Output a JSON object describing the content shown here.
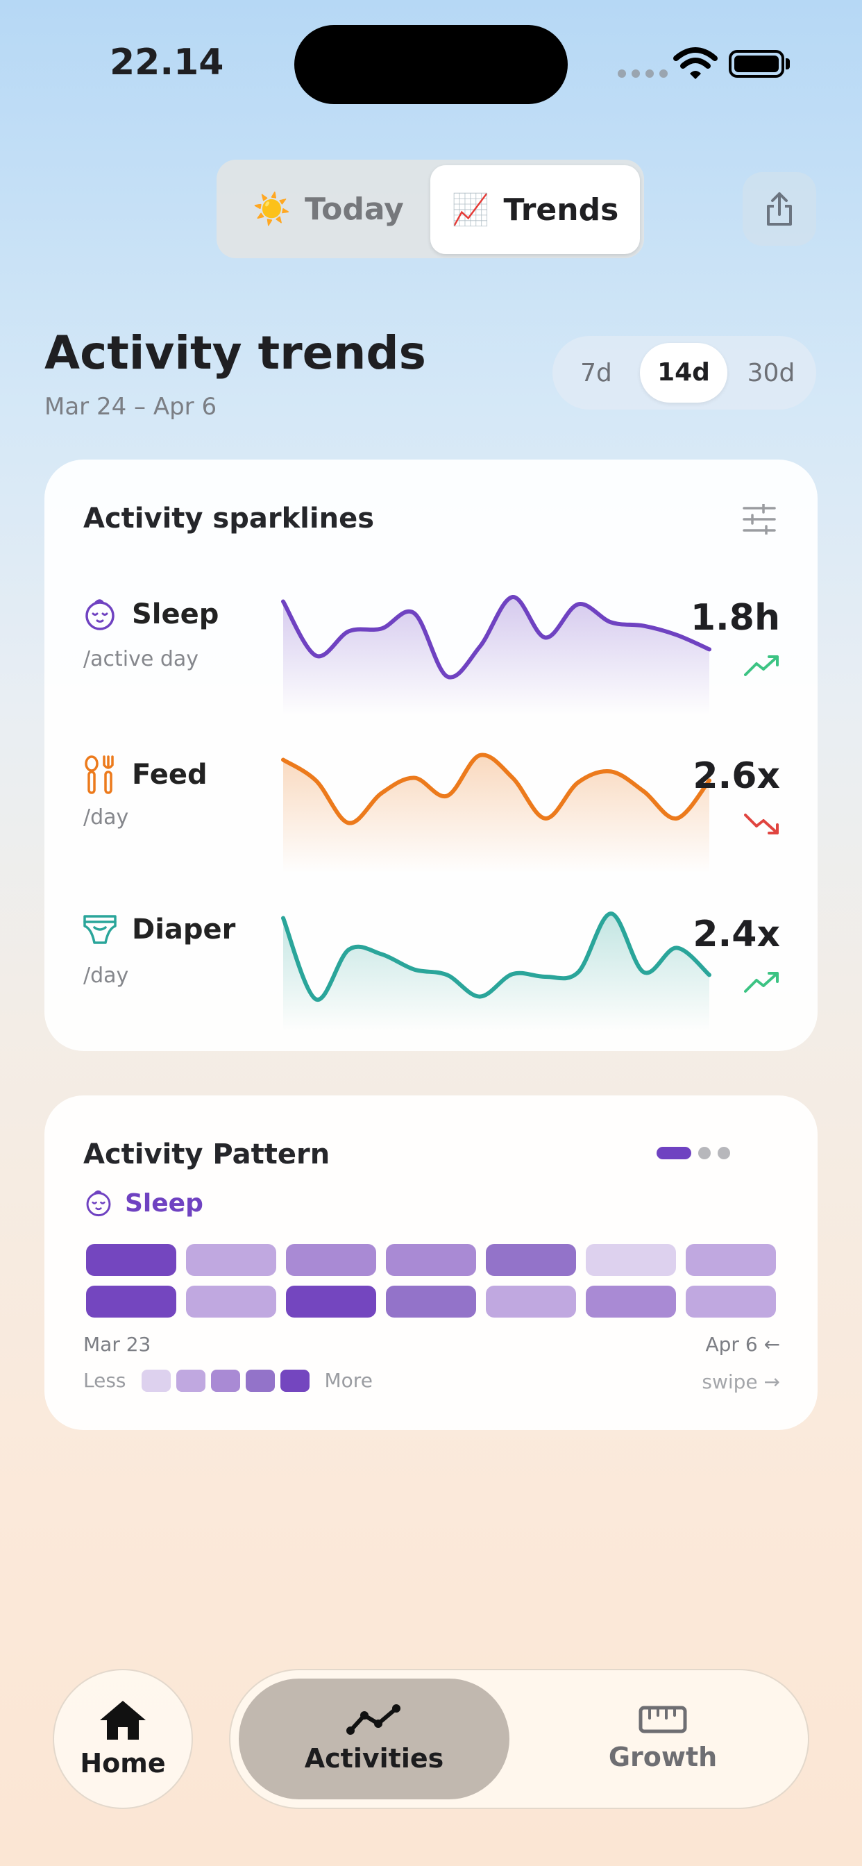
{
  "status_bar": {
    "time": "22.14"
  },
  "segmented": {
    "today": {
      "emoji": "☀️",
      "label": "Today"
    },
    "trends": {
      "emoji": "📈",
      "label": "Trends"
    }
  },
  "header": {
    "title": "Activity trends",
    "date_range": "Mar 24 – Apr 6",
    "range_options": [
      "7d",
      "14d",
      "30d"
    ],
    "range_selected": "14d"
  },
  "sparklines": {
    "title": "Activity sparklines",
    "rows": [
      {
        "name": "Sleep",
        "unit": "/active day",
        "value": "1.8h",
        "trend": "up",
        "color": "#6f42c1",
        "series": [
          0.95,
          0.35,
          0.62,
          0.65,
          0.82,
          0.12,
          0.45,
          1.0,
          0.55,
          0.92,
          0.72,
          0.68,
          0.58,
          0.42
        ]
      },
      {
        "name": "Feed",
        "unit": "/day",
        "value": "2.6x",
        "trend": "down",
        "color": "#ec7a1c",
        "series": [
          0.95,
          0.72,
          0.25,
          0.58,
          0.75,
          0.55,
          1.0,
          0.75,
          0.3,
          0.7,
          0.82,
          0.6,
          0.3,
          0.72
        ]
      },
      {
        "name": "Diaper",
        "unit": "/day",
        "value": "2.4x",
        "trend": "up",
        "color": "#2aa59a",
        "series": [
          0.95,
          0.05,
          0.6,
          0.55,
          0.38,
          0.32,
          0.08,
          0.33,
          0.3,
          0.35,
          1.0,
          0.35,
          0.62,
          0.32
        ]
      }
    ],
    "trend_colors": {
      "up": "#3cc383",
      "down": "#e0443f"
    }
  },
  "pattern": {
    "title": "Activity Pattern",
    "activity": "Sleep",
    "activity_color": "#6f42c1",
    "rows": [
      [
        5,
        2,
        3,
        3,
        4,
        1,
        2
      ],
      [
        5,
        2,
        5,
        4,
        2,
        3,
        2
      ]
    ],
    "levels": [
      "#ddd1ee",
      "#c0a8e0",
      "#a98ad4",
      "#9373c9",
      "#7446bf"
    ],
    "start_label": "Mar 23",
    "end_label": "Apr 6 ←",
    "legend_less": "Less",
    "legend_more": "More",
    "swipe": "swipe →"
  },
  "nav": {
    "home": "Home",
    "activities": "Activities",
    "growth": "Growth"
  }
}
